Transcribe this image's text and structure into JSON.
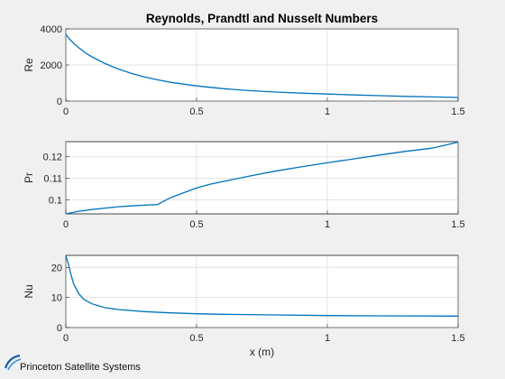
{
  "figure": {
    "brand": "Princeton Satellite Systems",
    "colors": {
      "series": "#0072bd",
      "background": "#f0f0f0",
      "axes": "#ffffff"
    }
  },
  "chart_data": [
    {
      "type": "line",
      "title": "Reynolds, Prandtl and Nusselt Numbers",
      "xlabel": "",
      "ylabel": "Re",
      "xlim": [
        0,
        1.5
      ],
      "ylim": [
        0,
        4000
      ],
      "xticks": [
        0,
        0.5,
        1,
        1.5
      ],
      "xtick_labels": [
        "0",
        "0.5",
        "1",
        "1.5"
      ],
      "yticks": [
        0,
        2000,
        4000
      ],
      "ytick_labels": [
        "0",
        "2000",
        "4000"
      ],
      "grid": true,
      "series": [
        {
          "x": [
            0,
            0.01,
            0.03,
            0.05,
            0.08,
            0.1,
            0.15,
            0.2,
            0.25,
            0.3,
            0.35,
            0.4,
            0.5,
            0.6,
            0.7,
            0.8,
            0.9,
            1.0,
            1.1,
            1.2,
            1.3,
            1.4,
            1.5
          ],
          "y": [
            3700,
            3500,
            3200,
            2950,
            2620,
            2450,
            2080,
            1780,
            1540,
            1340,
            1180,
            1040,
            840,
            690,
            580,
            500,
            440,
            390,
            340,
            300,
            260,
            230,
            200
          ]
        }
      ]
    },
    {
      "type": "line",
      "title": "",
      "xlabel": "",
      "ylabel": "Pr",
      "xlim": [
        0,
        1.5
      ],
      "ylim": [
        0.0935,
        0.127
      ],
      "xticks": [
        0,
        0.5,
        1,
        1.5
      ],
      "xtick_labels": [
        "0",
        "0.5",
        "1",
        "1.5"
      ],
      "yticks": [
        0.1,
        0.11,
        0.12
      ],
      "ytick_labels": [
        "0.1",
        "0.11",
        "0.12"
      ],
      "grid": true,
      "series": [
        {
          "x": [
            0,
            0.05,
            0.1,
            0.15,
            0.2,
            0.25,
            0.3,
            0.35,
            0.4,
            0.5,
            0.55,
            0.6,
            0.7,
            0.8,
            0.9,
            1.0,
            1.1,
            1.2,
            1.3,
            1.4,
            1.5
          ],
          "y": [
            0.0935,
            0.0947,
            0.0955,
            0.0962,
            0.0968,
            0.0972,
            0.0975,
            0.0978,
            0.101,
            0.1055,
            0.1072,
            0.1085,
            0.111,
            0.1133,
            0.1153,
            0.1172,
            0.119,
            0.1208,
            0.1225,
            0.124,
            0.1268
          ]
        }
      ]
    },
    {
      "type": "line",
      "title": "",
      "xlabel": "x (m)",
      "ylabel": "Nu",
      "xlim": [
        0,
        1.5
      ],
      "ylim": [
        0,
        24
      ],
      "xticks": [
        0,
        0.5,
        1,
        1.5
      ],
      "xtick_labels": [
        "0",
        "0.5",
        "1",
        "1.5"
      ],
      "yticks": [
        0,
        10,
        20
      ],
      "ytick_labels": [
        "0",
        "10",
        "20"
      ],
      "grid": true,
      "series": [
        {
          "x": [
            0,
            0.01,
            0.02,
            0.03,
            0.05,
            0.07,
            0.1,
            0.15,
            0.2,
            0.3,
            0.4,
            0.5,
            0.6,
            0.8,
            1.0,
            1.2,
            1.4,
            1.5
          ],
          "y": [
            24,
            21,
            17.5,
            14.5,
            11.2,
            9.3,
            7.9,
            6.6,
            6.0,
            5.3,
            4.9,
            4.6,
            4.4,
            4.2,
            4.0,
            3.9,
            3.85,
            3.8
          ]
        }
      ]
    }
  ]
}
